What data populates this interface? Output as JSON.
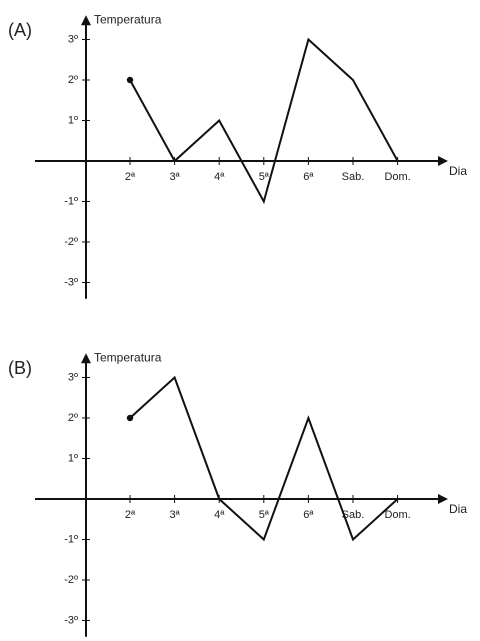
{
  "chart_data": [
    {
      "type": "line",
      "label": "(A)",
      "y_label": "Temperatura",
      "x_label": "Dia",
      "categories": [
        "2ª",
        "3ª",
        "4ª",
        "5ª",
        "6ª",
        "Sab.",
        "Dom."
      ],
      "values": [
        2,
        0,
        1,
        -1,
        3,
        2,
        0
      ],
      "color": "#111111",
      "ylim": [
        -3.4,
        3.6
      ],
      "yticks": [
        {
          "value": 3,
          "label": "3º"
        },
        {
          "value": 2,
          "label": "2º"
        },
        {
          "value": 1,
          "label": "1º"
        },
        {
          "value": -1,
          "label": "-1º"
        },
        {
          "value": -2,
          "label": "-2º"
        },
        {
          "value": -3,
          "label": "-3º"
        }
      ]
    },
    {
      "type": "line",
      "label": "(B)",
      "y_label": "Temperatura",
      "x_label": "Dia",
      "categories": [
        "2ª",
        "3ª",
        "4ª",
        "5ª",
        "6ª",
        "Sab.",
        "Dom."
      ],
      "values": [
        2,
        3,
        0,
        -1,
        2,
        -1,
        0
      ],
      "color": "#111111",
      "ylim": [
        -3.4,
        3.6
      ],
      "yticks": [
        {
          "value": 3,
          "label": "3º"
        },
        {
          "value": 2,
          "label": "2º"
        },
        {
          "value": 1,
          "label": "1º"
        },
        {
          "value": -1,
          "label": "-1º"
        },
        {
          "value": -2,
          "label": "-2º"
        },
        {
          "value": -3,
          "label": "-3º"
        }
      ]
    }
  ]
}
